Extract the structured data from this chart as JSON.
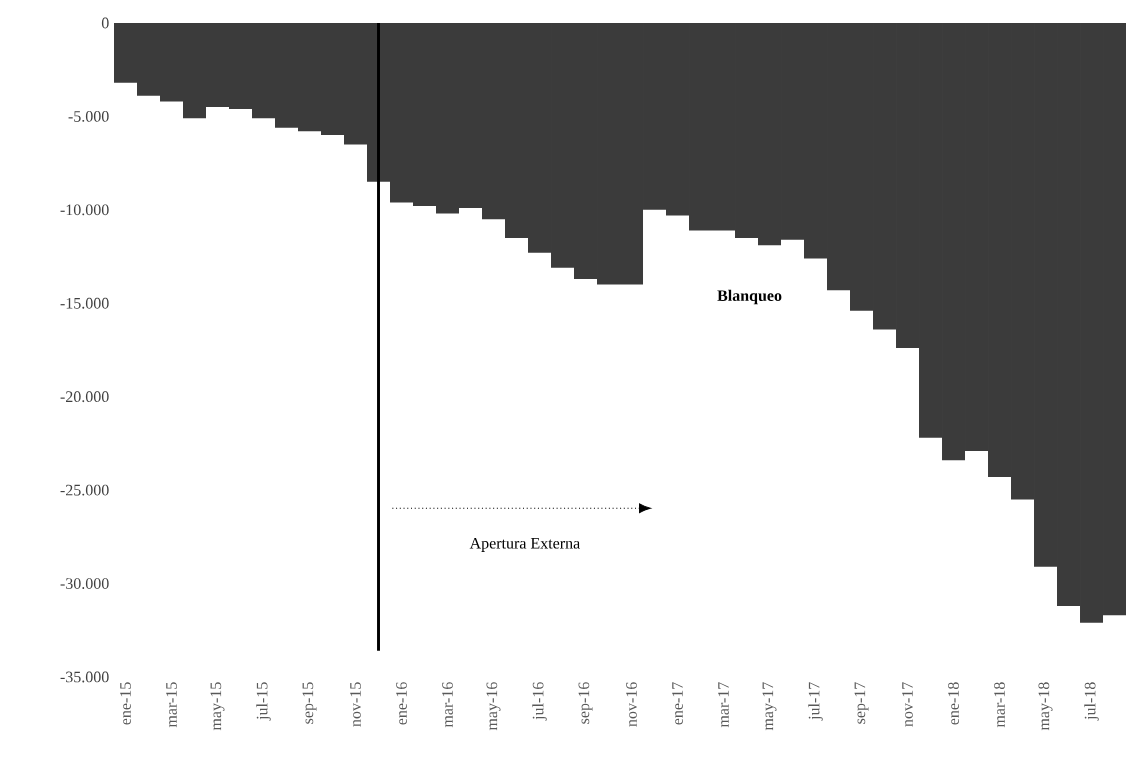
{
  "chart_data": {
    "type": "bar",
    "color": "#3b3b3b",
    "categories": [
      "ene-15",
      null,
      "mar-15",
      null,
      "may-15",
      null,
      "jul-15",
      null,
      "sep-15",
      null,
      "nov-15",
      null,
      "ene-16",
      null,
      "mar-16",
      null,
      "may-16",
      null,
      "jul-16",
      null,
      "sep-16",
      null,
      "nov-16",
      null,
      "ene-17",
      null,
      "mar-17",
      null,
      "may-17",
      null,
      "jul-17",
      null,
      "sep-17",
      null,
      "nov-17",
      null,
      "ene-18",
      null,
      "mar-18",
      null,
      "may-18",
      null,
      "jul-18",
      null
    ],
    "values": [
      -3200,
      -3900,
      -4200,
      -5100,
      -4500,
      -4600,
      -5100,
      -5600,
      -5800,
      -6000,
      -6500,
      -8500,
      -9600,
      -9800,
      -10200,
      -9900,
      -10500,
      -11500,
      -12300,
      -13100,
      -13700,
      -14000,
      -14000,
      -10000,
      -10300,
      -11100,
      -11100,
      -11500,
      -11900,
      -11600,
      -12600,
      -14300,
      -15400,
      -16400,
      -17400,
      -22200,
      -23400,
      -22900,
      -24300,
      -25500,
      -29100,
      -31200,
      -32100,
      -31700
    ],
    "ylim": [
      -35000,
      0
    ],
    "yticks": [
      {
        "value": -35000,
        "label": "-35.000"
      },
      {
        "value": -30000,
        "label": "-30.000"
      },
      {
        "value": -25000,
        "label": "-25.000"
      },
      {
        "value": -20000,
        "label": "-20.000"
      },
      {
        "value": -15000,
        "label": "-15.000"
      },
      {
        "value": -10000,
        "label": "-10.000"
      },
      {
        "value": -5000,
        "label": "-5.000"
      },
      0
    ],
    "annotations": [
      "Blanqueo",
      "Apertura Externa"
    ]
  }
}
